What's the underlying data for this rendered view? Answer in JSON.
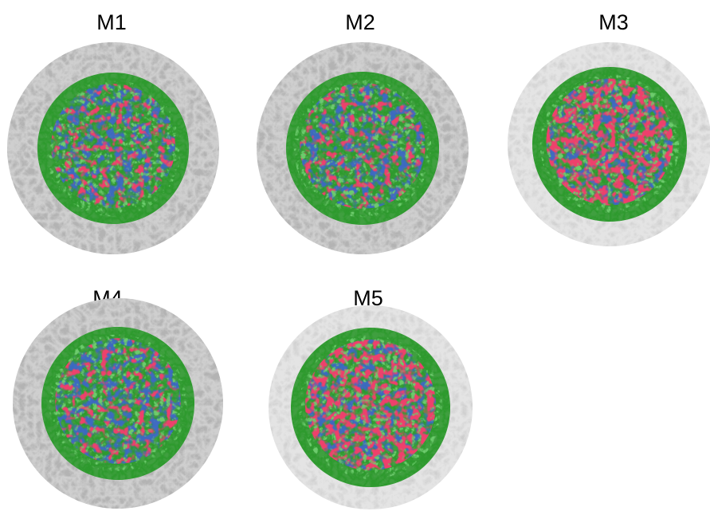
{
  "panels": [
    {
      "label": "M1"
    },
    {
      "label": "M2"
    },
    {
      "label": "M3"
    },
    {
      "label": "M4"
    },
    {
      "label": "M5"
    }
  ]
}
